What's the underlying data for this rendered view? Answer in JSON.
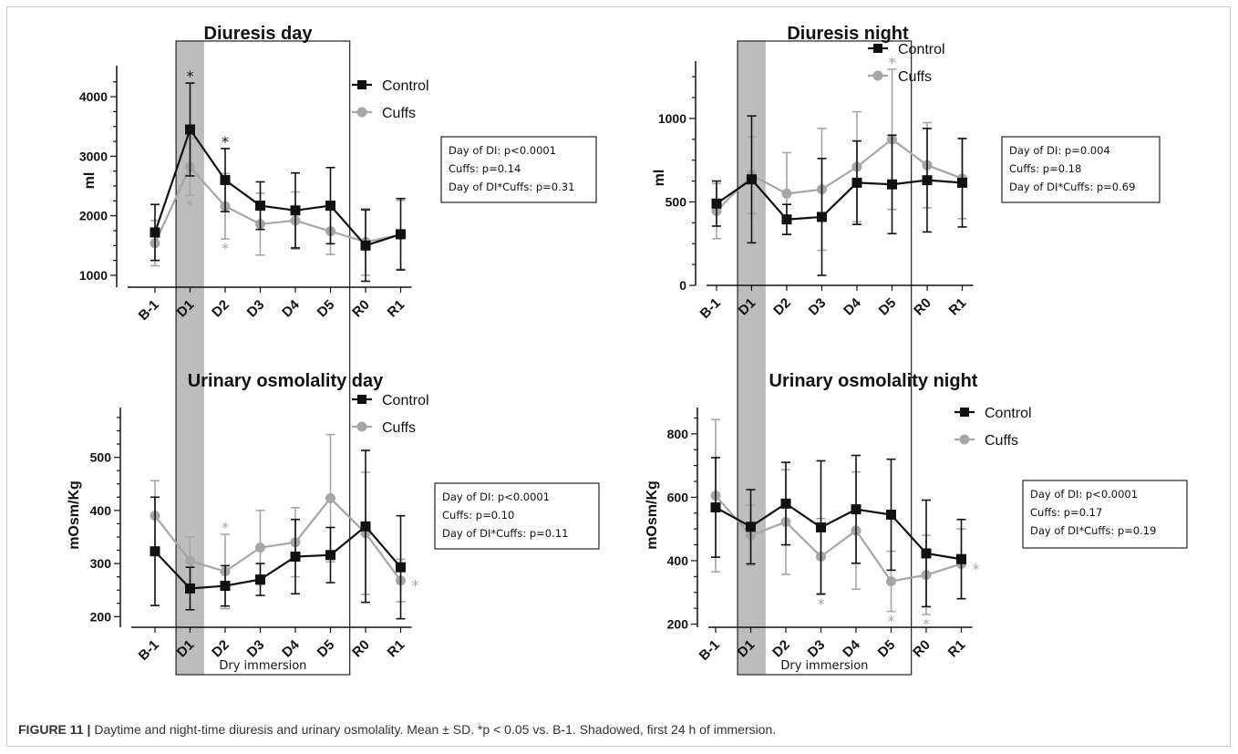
{
  "colors": {
    "control": "#111111",
    "cuffs": "#a6a6a6",
    "shade": "#bdbdbd"
  },
  "immersion_label": "Dry immersion",
  "caption": {
    "label": "FIGURE 11 |",
    "text": "Daytime and night-time diuresis and urinary osmolality. Mean ± SD. *p < 0.05 vs. B-1. Shadowed, first 24 h of immersion."
  },
  "chart_data": [
    {
      "type": "line",
      "title": "Diuresis day",
      "ylabel": "ml",
      "ylim": [
        800,
        4400
      ],
      "yticks": [
        1000,
        2000,
        3000,
        4000
      ],
      "categories": [
        "B-1",
        "D1",
        "D2",
        "D3",
        "D4",
        "D5",
        "R0",
        "R1"
      ],
      "legend": [
        "Control",
        "Cuffs"
      ],
      "series": [
        {
          "name": "Control",
          "values": [
            1720,
            3450,
            2600,
            2170,
            2090,
            2170,
            1500,
            1690
          ],
          "errors": [
            470,
            780,
            530,
            400,
            630,
            640,
            600,
            600
          ]
        },
        {
          "name": "Cuffs",
          "values": [
            1540,
            2820,
            2160,
            1860,
            1920,
            1740,
            1560,
            1680
          ],
          "errors": [
            380,
            480,
            550,
            520,
            480,
            390,
            560,
            580
          ]
        }
      ],
      "stars": [
        {
          "index": 1,
          "series": "Control",
          "pos": "top"
        },
        {
          "index": 2,
          "series": "Control",
          "pos": "top"
        },
        {
          "index": 1,
          "series": "Cuffs",
          "pos": "bottom"
        },
        {
          "index": 2,
          "series": "Cuffs",
          "pos": "bottom"
        }
      ],
      "stats": [
        "Day of DI: p<0.0001",
        "Cuffs: p=0.14",
        "Day of DI*Cuffs: p=0.31"
      ]
    },
    {
      "type": "line",
      "title": "Diuresis night",
      "ylabel": "ml",
      "ylim": [
        0,
        1300
      ],
      "yticks": [
        0,
        500,
        1000
      ],
      "categories": [
        "B-1",
        "D1",
        "D2",
        "D3",
        "D4",
        "D5",
        "R0",
        "R1"
      ],
      "legend": [
        "Control",
        "Cuffs"
      ],
      "series": [
        {
          "name": "Control",
          "values": [
            490,
            635,
            395,
            410,
            615,
            605,
            630,
            615
          ],
          "errors": [
            135,
            380,
            90,
            350,
            250,
            295,
            310,
            265
          ]
        },
        {
          "name": "Cuffs",
          "values": [
            445,
            660,
            550,
            575,
            710,
            875,
            720,
            640
          ],
          "errors": [
            165,
            230,
            245,
            365,
            330,
            420,
            255,
            240
          ]
        }
      ],
      "stars": [
        {
          "index": 5,
          "series": "Cuffs",
          "pos": "top"
        }
      ],
      "stats": [
        "Day of DI: p=0.004",
        "Cuffs: p=0.18",
        "Day of DI*Cuffs: p=0.69"
      ]
    },
    {
      "type": "line",
      "title": "Urinary osmolality day",
      "ylabel": "mOsm/Kg",
      "ylim": [
        180,
        580
      ],
      "yticks": [
        200,
        300,
        400,
        500
      ],
      "categories": [
        "B-1",
        "D1",
        "D2",
        "D3",
        "D4",
        "D5",
        "R0",
        "R1"
      ],
      "legend": [
        "Control",
        "Cuffs"
      ],
      "series": [
        {
          "name": "Control",
          "values": [
            323,
            253,
            258,
            270,
            313,
            316,
            370,
            293
          ],
          "errors": [
            102,
            40,
            38,
            30,
            70,
            52,
            143,
            97
          ]
        },
        {
          "name": "Cuffs",
          "values": [
            390,
            305,
            285,
            330,
            340,
            423,
            357,
            268
          ],
          "errors": [
            66,
            45,
            70,
            70,
            65,
            120,
            115,
            40
          ]
        }
      ],
      "stars": [
        {
          "index": 2,
          "series": "Cuffs",
          "pos": "top"
        },
        {
          "index": 7,
          "series": "Cuffs",
          "pos": "right"
        }
      ],
      "stats": [
        "Day of DI: p<0.0001",
        "Cuffs: p=0.10",
        "Day of DI*Cuffs: p=0.11"
      ]
    },
    {
      "type": "line",
      "title": "Urinary osmolality night",
      "ylabel": "mOsm/Kg",
      "ylim": [
        190,
        860
      ],
      "yticks": [
        200,
        400,
        600,
        800
      ],
      "categories": [
        "B-1",
        "D1",
        "D2",
        "D3",
        "D4",
        "D5",
        "R0",
        "R1"
      ],
      "legend": [
        "Control",
        "Cuffs"
      ],
      "series": [
        {
          "name": "Control",
          "values": [
            568,
            507,
            580,
            505,
            562,
            545,
            423,
            405
          ],
          "errors": [
            157,
            117,
            130,
            210,
            170,
            175,
            168,
            125
          ]
        },
        {
          "name": "Cuffs",
          "values": [
            605,
            480,
            522,
            413,
            495,
            335,
            355,
            390
          ],
          "errors": [
            240,
            95,
            165,
            120,
            185,
            95,
            125,
            110
          ]
        }
      ],
      "stars": [
        {
          "index": 3,
          "series": "Cuffs",
          "pos": "bottom"
        },
        {
          "index": 5,
          "series": "Cuffs",
          "pos": "bottom"
        },
        {
          "index": 6,
          "series": "Cuffs",
          "pos": "bottom"
        },
        {
          "index": 7,
          "series": "Cuffs",
          "pos": "right"
        }
      ],
      "stats": [
        "Day of DI: p<0.0001",
        "Cuffs: p=0.17",
        "Day of DI*Cuffs: p=0.19"
      ]
    }
  ]
}
